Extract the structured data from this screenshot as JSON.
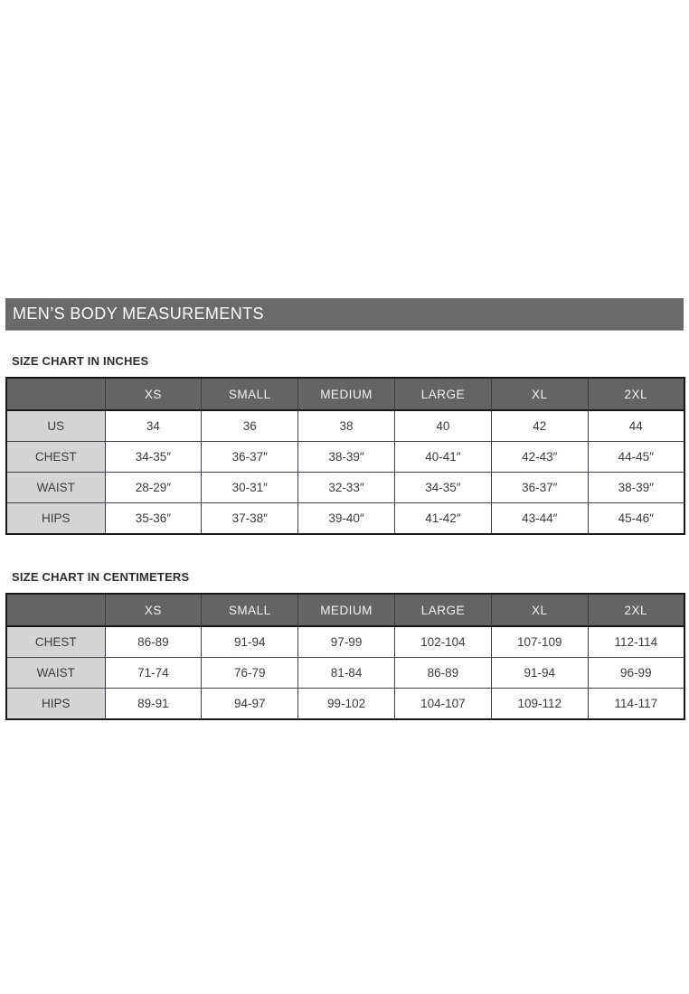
{
  "banner": {
    "title": "MEN’S BODY MEASUREMENTS"
  },
  "inches": {
    "label": "SIZE CHART IN INCHES",
    "columns": [
      "XS",
      "SMALL",
      "MEDIUM",
      "LARGE",
      "XL",
      "2XL"
    ],
    "rows": [
      {
        "label": "US",
        "values": [
          "34",
          "36",
          "38",
          "40",
          "42",
          "44"
        ]
      },
      {
        "label": "CHEST",
        "values": [
          "34-35″",
          "36-37″",
          "38-39″",
          "40-41″",
          "42-43″",
          "44-45″"
        ]
      },
      {
        "label": "WAIST",
        "values": [
          "28-29″",
          "30-31″",
          "32-33″",
          "34-35″",
          "36-37″",
          "38-39″"
        ]
      },
      {
        "label": "HIPS",
        "values": [
          "35-36″",
          "37-38″",
          "39-40″",
          "41-42″",
          "43-44″",
          "45-46″"
        ]
      }
    ]
  },
  "centimeters": {
    "label": "SIZE CHART IN CENTIMETERS",
    "columns": [
      "XS",
      "SMALL",
      "MEDIUM",
      "LARGE",
      "XL",
      "2XL"
    ],
    "rows": [
      {
        "label": "CHEST",
        "values": [
          "86-89",
          "91-94",
          "97-99",
          "102-104",
          "107-109",
          "112-114"
        ]
      },
      {
        "label": "WAIST",
        "values": [
          "71-74",
          "76-79",
          "81-84",
          "86-89",
          "91-94",
          "96-99"
        ]
      },
      {
        "label": "HIPS",
        "values": [
          "89-91",
          "94-97",
          "99-102",
          "104-107",
          "109-112",
          "114-117"
        ]
      }
    ]
  },
  "colors": {
    "banner_bg": "#6a6a6a",
    "table_header_bg": "#646464",
    "row_label_bg": "#d4d4d4",
    "value_cell_bg": "#ffffff",
    "border": "#17171c",
    "text": "#3b3b3b",
    "header_text": "#f2f2f2"
  }
}
